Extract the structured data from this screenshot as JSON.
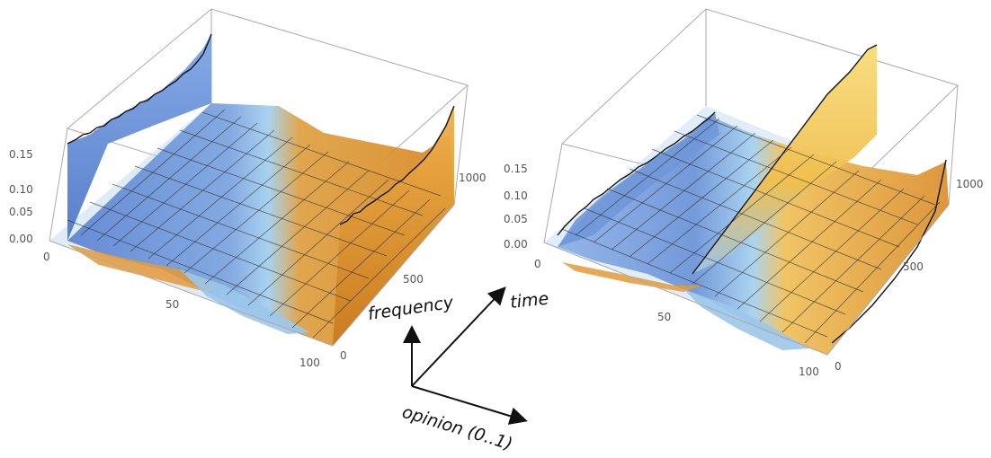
{
  "chart_data": [
    {
      "type": "surface3d",
      "opinion_ticks": [
        "0",
        "50",
        "100"
      ],
      "time_ticks": [
        "500",
        "1000"
      ],
      "time_zero_label": "0",
      "frequency_ticks": [
        "0.00",
        "0.05",
        "0.10",
        "0.15"
      ],
      "colors": {
        "low_opinion": "#6f93d8",
        "high_opinion": "#e8a33c",
        "valley": "#9cc7ea"
      }
    },
    {
      "type": "surface3d",
      "opinion_ticks": [
        "0",
        "50",
        "100"
      ],
      "time_ticks": [
        "500",
        "1000"
      ],
      "time_zero_label": "0",
      "frequency_ticks": [
        "0.00",
        "0.05",
        "0.10",
        "0.15"
      ],
      "colors": {
        "low_opinion": "#6f93d8",
        "high_opinion": "#e8a33c",
        "valley": "#9cc7ea"
      }
    }
  ],
  "axes_legend": {
    "frequency": "frequency",
    "time": "time",
    "opinion": "opinion (0..1)"
  }
}
